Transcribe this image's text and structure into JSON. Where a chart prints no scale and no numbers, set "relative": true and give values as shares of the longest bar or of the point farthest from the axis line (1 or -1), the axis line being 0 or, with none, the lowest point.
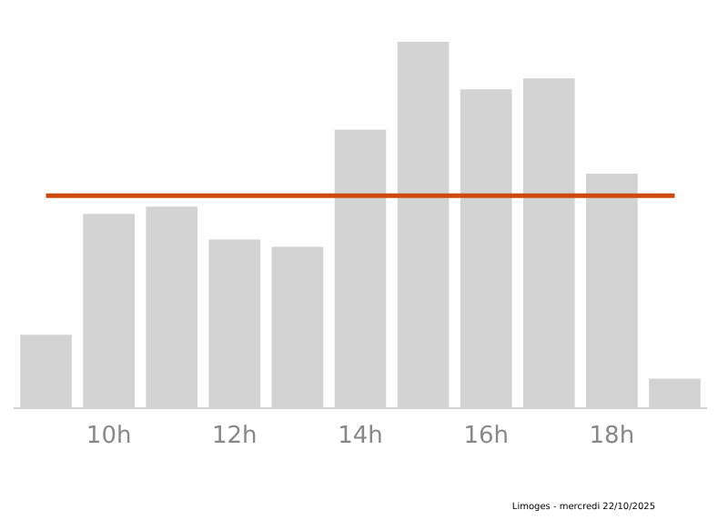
{
  "chart_data": {
    "type": "bar",
    "relative": true,
    "categories": [
      null,
      "10h",
      null,
      "12h",
      null,
      "14h",
      null,
      "16h",
      null,
      "18h",
      null
    ],
    "values": [
      0.2,
      0.53,
      0.55,
      0.46,
      0.44,
      0.76,
      1,
      0.87,
      0.9,
      0.64,
      0.08
    ],
    "color": "#d3d3d3",
    "ref_lines": [
      {
        "axis": "y",
        "value": 0.58,
        "color": "#cc4a0e"
      }
    ],
    "grid": false,
    "legend": false,
    "annotations": [
      "Limoges - mercredi 22/10/2025"
    ]
  }
}
